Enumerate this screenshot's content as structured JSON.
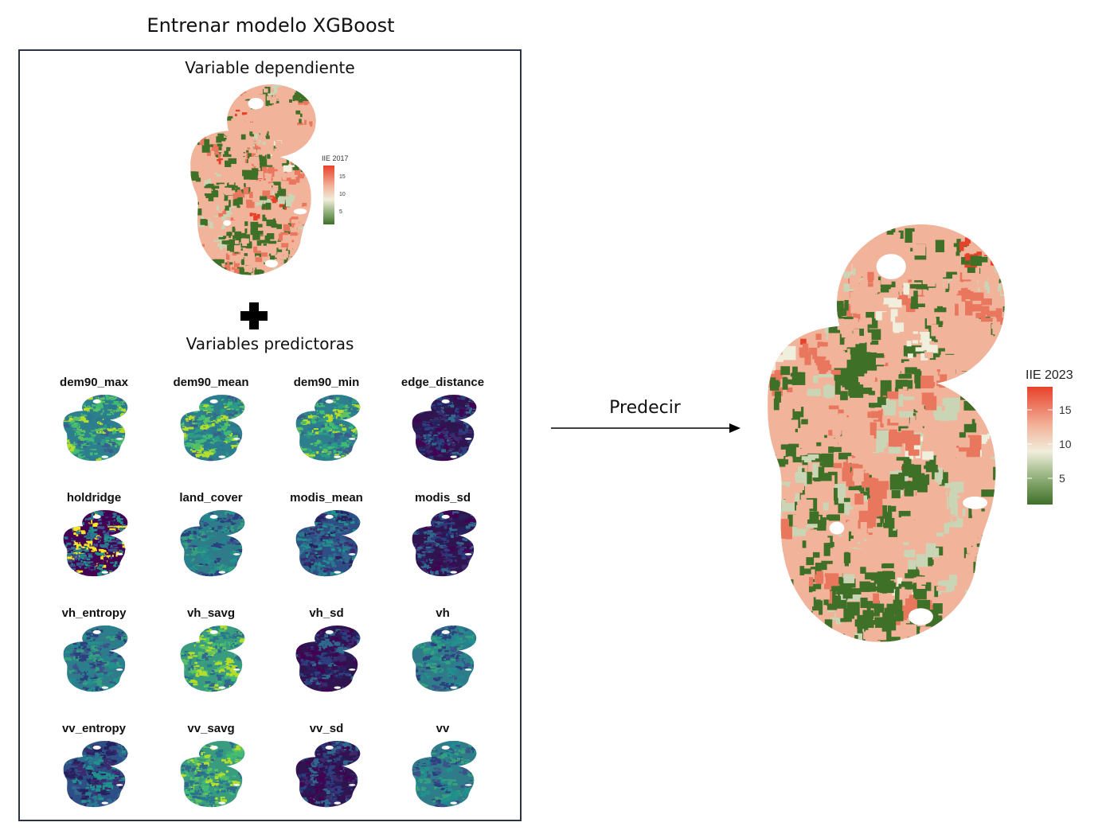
{
  "title": "Entrenar modelo XGBoost",
  "dependent": {
    "title": "Variable dependiente",
    "legend_title": "IIE 2017",
    "ticks": [
      "15",
      "10",
      "5"
    ]
  },
  "predictors": {
    "title": "Variables predictoras",
    "items": [
      {
        "label": "dem90_max",
        "palette": "viridis-bright"
      },
      {
        "label": "dem90_mean",
        "palette": "viridis-bright"
      },
      {
        "label": "dem90_min",
        "palette": "viridis-bright"
      },
      {
        "label": "edge_distance",
        "palette": "viridis-dark"
      },
      {
        "label": "holdridge",
        "palette": "viridis-patch"
      },
      {
        "label": "land_cover",
        "palette": "viridis-mid"
      },
      {
        "label": "modis_mean",
        "palette": "viridis-dark-mid"
      },
      {
        "label": "modis_sd",
        "palette": "viridis-dark"
      },
      {
        "label": "vh_entropy",
        "palette": "viridis-mid"
      },
      {
        "label": "vh_savg",
        "palette": "viridis-green"
      },
      {
        "label": "vh_sd",
        "palette": "viridis-dark"
      },
      {
        "label": "vh",
        "palette": "viridis-mid"
      },
      {
        "label": "vv_entropy",
        "palette": "viridis-dark-mid"
      },
      {
        "label": "vv_savg",
        "palette": "viridis-green"
      },
      {
        "label": "vv_sd",
        "palette": "viridis-dark"
      },
      {
        "label": "vv",
        "palette": "viridis-mid"
      }
    ]
  },
  "predict": {
    "label": "Predecir"
  },
  "output": {
    "legend_title": "IIE 2023",
    "ticks": [
      "15",
      "10",
      "5"
    ]
  },
  "colors": {
    "high": "#e8412a",
    "mid": "#f0eedc",
    "low": "#3f7028",
    "salmon": "#f2b39b",
    "border": "#2b3344"
  }
}
